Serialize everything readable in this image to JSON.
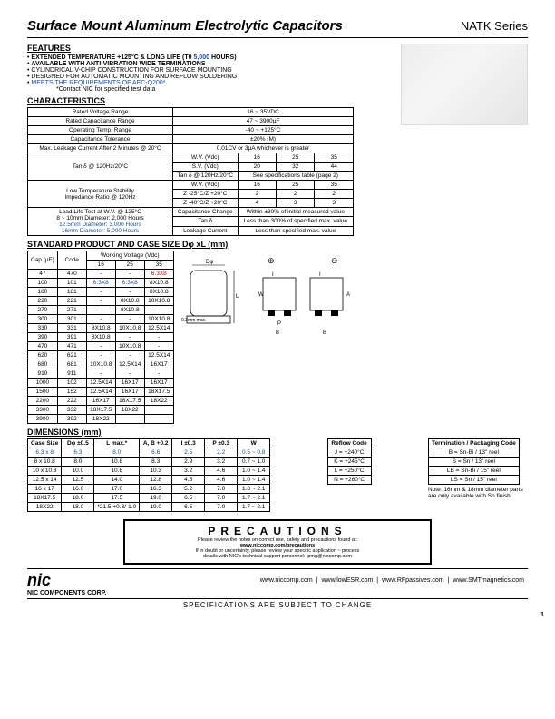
{
  "header": {
    "title": "Surface Mount Aluminum Electrolytic Capacitors",
    "series": "NATK Series"
  },
  "features": {
    "title": "FEATURES",
    "items": [
      {
        "pre": "EXTENDED TEMPERATURE +125°C & LONG LIFE (T0 ",
        "blue": "5,000",
        "post": " HOURS)",
        "bold": true
      },
      {
        "pre": "AVAILABLE WITH ANTI-VIBRATION WIDE TERMINATIONS",
        "blue": "",
        "post": "",
        "bold": true
      },
      {
        "pre": "CYLINDRICAL V-CHIP CONSTRUCTION FOR SURFACE MOUNTING",
        "blue": "",
        "post": "",
        "bold": false
      },
      {
        "pre": "DESIGNED FOR AUTOMATIC MOUNTING AND REFLOW   SOLDERING",
        "blue": "",
        "post": "",
        "bold": false
      },
      {
        "pre": "",
        "blue": "MEETS THE REQUIREMENTS OF AEC-Q200*",
        "post": "",
        "bold": false
      }
    ],
    "note": "*Contact NIC for specified test data"
  },
  "characteristics": {
    "title": "CHARACTERISTICS",
    "rows1": [
      [
        "Rated Voltage Range",
        "16 ~ 35VDC"
      ],
      [
        "Rated Capacitance Range",
        "47 ~ 3900µF"
      ],
      [
        "Operating Temp. Range",
        "-40 ~ +125°C"
      ],
      [
        "Capacitance Tolerance",
        "±20% (M)"
      ],
      [
        "Max. Leakage Current After 2 Minutes @ 20°C",
        "0.01CV or 3µA whichever is greater"
      ]
    ],
    "tan": {
      "label": "Tan δ  @ 120Hz/20°C",
      "wv_label": "W.V. (Vdc)",
      "wv_vals": [
        "16",
        "25",
        "35"
      ],
      "sv_label": "S.V. (Vdc)",
      "sv_vals": [
        "20",
        "32",
        "44"
      ],
      "tan_label": "Tan δ @ 120Hz/20°C",
      "tan_note": "See specifications table (page 2)"
    },
    "low_temp": {
      "label": "Low Temperature Stability\nImpedance Ratio @ 120Hz",
      "wv_label": "W.V. (Vdc)",
      "wv_vals": [
        "16",
        "25",
        "35"
      ],
      "r1_label": "Z -25°C/Z +20°C",
      "r1_vals": [
        "2",
        "2",
        "2"
      ],
      "r2_label": "Z -40°C/Z +20°C",
      "r2_vals": [
        "4",
        "3",
        "3"
      ]
    },
    "load_life": {
      "l1": "Load Life Test at W.V. @ 125°C",
      "l2": "8 ~ 10mm Diameter: 2,000 Hours",
      "l3": "12.5mm Diameter: 3,000 Hours",
      "l4": "16mm Diameter: 5,000 Hours",
      "cap_change_label": "Capacitance Change",
      "cap_change_val": "Within ±30% of initial measured value",
      "tan_label": "Tan δ",
      "tan_val": "Less than 300% of specified max. value",
      "leak_label": "Leakage Current",
      "leak_val": "Less than specified max. value"
    }
  },
  "product": {
    "title": "STANDARD PRODUCT AND CASE SIZE Dφ xL (mm)",
    "wv_header": "Working Voltage  (Vdc)",
    "cols": [
      "Cap.(µF)",
      "Code",
      "16",
      "25",
      "35"
    ],
    "rows": [
      [
        "47",
        "470",
        "-",
        "-",
        "6.3X8"
      ],
      [
        "100",
        "101",
        "6.3X8",
        "6.3X8",
        "8X10.8"
      ],
      [
        "180",
        "181",
        "-",
        "-",
        "8X10.8"
      ],
      [
        "220",
        "221",
        "-",
        "8X10.8",
        "10X10.8"
      ],
      [
        "270",
        "271",
        "-",
        "8X10.8",
        "-"
      ],
      [
        "300",
        "301",
        "-",
        "-",
        "10X10.8"
      ],
      [
        "330",
        "331",
        "8X10.8",
        "10X10.8",
        "12.5X14"
      ],
      [
        "390",
        "391",
        "8X10.8",
        "-",
        "-"
      ],
      [
        "470",
        "471",
        "-",
        "10X10.8",
        "-"
      ],
      [
        "620",
        "621",
        "-",
        "-",
        "12.5X14"
      ],
      [
        "680",
        "681",
        "10X10.8",
        "12.5X14",
        "16X17"
      ],
      [
        "910",
        "911",
        "-",
        "-",
        "-"
      ],
      [
        "1000",
        "102",
        "12.5X14",
        "16X17",
        "16X17"
      ],
      [
        "1500",
        "152",
        "12.5X14",
        "16X17",
        "18X17.5"
      ],
      [
        "2200",
        "222",
        "16X17",
        "18X17.5",
        "18X22"
      ],
      [
        "3300",
        "332",
        "18X17.5",
        "18X22",
        ""
      ],
      [
        "3900",
        "392",
        "18X22",
        "",
        ""
      ]
    ]
  },
  "dimensions": {
    "title": "DIMENSIONS (mm)",
    "cols": [
      "Case Size",
      "Dφ ±0.5",
      "L max.*",
      "A, B +0.2",
      "I ±0.3",
      "P ±0.3",
      "W"
    ],
    "rows": [
      [
        "6.3 x 8",
        "6.3",
        "8.0",
        "6.6",
        "2.5",
        "2.2",
        "0.5 ~ 0.8"
      ],
      [
        "8 x 10.8",
        "8.0",
        "10.8",
        "8.3",
        "2.9",
        "3.2",
        "0.7 ~ 1.0"
      ],
      [
        "10 x 10.8",
        "10.0",
        "10.8",
        "10.3",
        "3.2",
        "4.6",
        "1.0 ~ 1.4"
      ],
      [
        "12.5 x 14",
        "12.5",
        "14.0",
        "12.8",
        "4.5",
        "4.6",
        "1.0 ~ 1.4"
      ],
      [
        "16 x 17",
        "16.0",
        "17.0",
        "16.3",
        "5.2",
        "7.0",
        "1.8 ~ 2.1"
      ],
      [
        "18X17.5",
        "18.0",
        "17.5",
        "19.0",
        "6.5",
        "7.0",
        "1.7 ~ 2.1"
      ],
      [
        "18X22",
        "18.0",
        "*21.5 +0.3/-1.0",
        "19.0",
        "6.5",
        "7.0",
        "1.7 ~ 2.1"
      ]
    ]
  },
  "reflow": {
    "header": "Reflow Code",
    "rows": [
      [
        "J = +240°C"
      ],
      [
        "K = +245°C"
      ],
      [
        "L = +250°C"
      ],
      [
        "N = +260°C"
      ]
    ]
  },
  "term": {
    "header": "Termination / Packaging Code",
    "rows": [
      [
        "B = Sn-Bi / 13\" reel"
      ],
      [
        "S = Sn / 13\" reel"
      ],
      [
        "LB = Sn-Bi / 15\" reel"
      ],
      [
        "LS = Sn / 15\" reel"
      ]
    ],
    "note": "Note: 16mm & 18mm diameter parts are only available with Sn finish"
  },
  "precautions": {
    "title": "PRECAUTIONS",
    "l1": "Please review the notes on correct use, safety and precautions found at:",
    "l2": "www.niccomp.com/precautions",
    "l3": "If in doubt or uncertainty, please review your specific application ~ process",
    "l4": "details with NIC's technical support personnel: tpmg@niccomp.com"
  },
  "footer": {
    "corp": "NIC COMPONENTS CORP.",
    "links": [
      "www.niccomp.com",
      "www.lowESR.com",
      "www.RFpassives.com",
      "www.SMTmagnetics.com"
    ],
    "spec": "SPECIFICATIONS ARE SUBJECT TO CHANGE",
    "page": "1"
  },
  "diagram": {
    "d_label": "Dφ",
    "l_label": "L",
    "w_label": "W",
    "i_label": "I",
    "p_label": "P",
    "b_label": "B",
    "a_label": "A",
    "note": "0.3mm max.",
    "plus": "⊕",
    "minus": "⊖"
  }
}
